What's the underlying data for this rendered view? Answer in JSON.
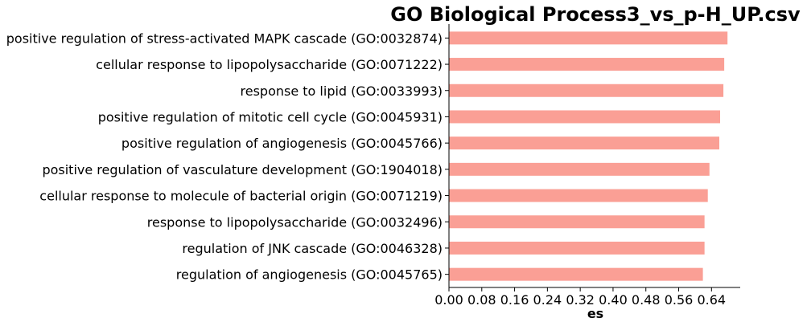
{
  "chart_data": {
    "type": "bar",
    "orientation": "horizontal",
    "title": "GO Biological Process3_vs_p-H_UP.csv",
    "xlabel": "es",
    "ylabel": "",
    "xlim": [
      0,
      0.71
    ],
    "xticks": [
      "0.00",
      "0.08",
      "0.16",
      "0.24",
      "0.32",
      "0.40",
      "0.48",
      "0.56",
      "0.64"
    ],
    "bar_color": "#fa9f95",
    "categories": [
      "positive regulation of stress-activated MAPK cascade (GO:0032874)",
      "cellular response to lipopolysaccharide (GO:0071222)",
      "response to lipid (GO:0033993)",
      "positive regulation of mitotic cell cycle (GO:0045931)",
      "positive regulation of angiogenesis (GO:0045766)",
      "positive regulation of vasculature development (GO:1904018)",
      "cellular response to molecule of bacterial origin (GO:0071219)",
      "response to lipopolysaccharide (GO:0032496)",
      "regulation of JNK cascade (GO:0046328)",
      "regulation of angiogenesis (GO:0045765)"
    ],
    "values": [
      0.679,
      0.671,
      0.669,
      0.661,
      0.659,
      0.635,
      0.631,
      0.623,
      0.623,
      0.619
    ]
  }
}
